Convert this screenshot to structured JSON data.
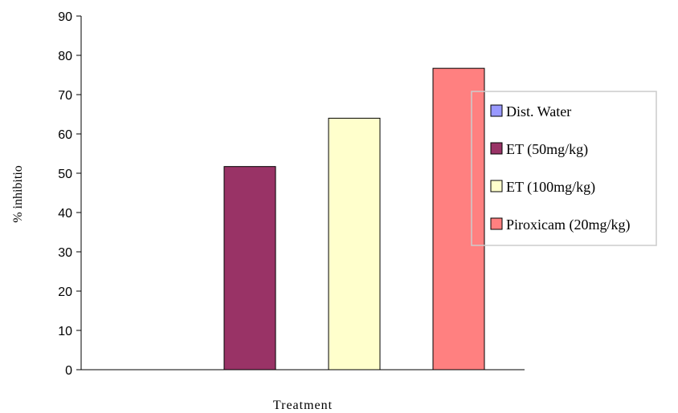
{
  "chart_data": {
    "type": "bar",
    "title": "",
    "xlabel": "Treatment",
    "ylabel": "% inhibitio",
    "ylim": [
      0,
      90
    ],
    "y_ticks": [
      0,
      10,
      20,
      30,
      40,
      50,
      60,
      70,
      80,
      90
    ],
    "grid": false,
    "legend_position": "right",
    "series": [
      {
        "name": "Dist. Water",
        "value": 0,
        "color": "#9999FF"
      },
      {
        "name": "ET (50mg/kg)",
        "value": 51.7,
        "color": "#993366"
      },
      {
        "name": "ET (100mg/kg)",
        "value": 64.0,
        "color": "#FFFFCC"
      },
      {
        "name": "Piroxicam (20mg/kg)",
        "value": 76.7,
        "color": "#FF8080"
      }
    ]
  }
}
